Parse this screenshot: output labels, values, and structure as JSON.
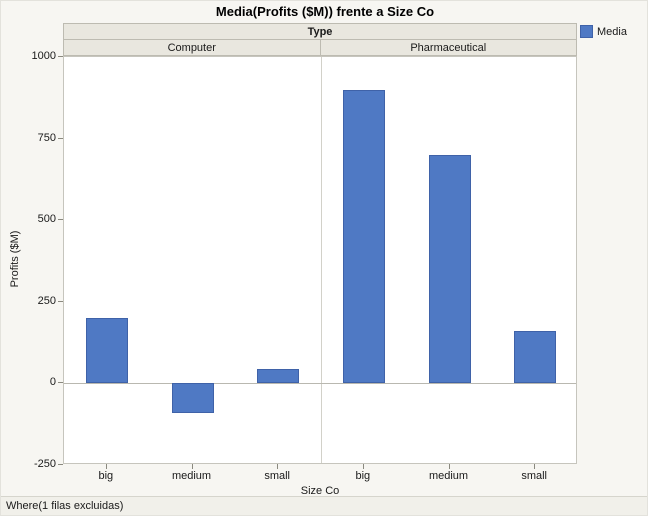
{
  "chart_data": {
    "type": "bar",
    "title": "Media(Profits ($M)) frente a Size Co",
    "group_header": "Type",
    "groups": [
      {
        "label": "Computer",
        "categories": [
          "big",
          "medium",
          "small"
        ],
        "values": [
          200,
          -90,
          45
        ]
      },
      {
        "label": "Pharmaceutical",
        "categories": [
          "big",
          "medium",
          "small"
        ],
        "values": [
          900,
          700,
          160
        ]
      }
    ],
    "series_name": "Media",
    "xlabel": "Size Co",
    "ylabel": "Profits ($M)",
    "ylim": [
      -250,
      1000
    ],
    "yticks": [
      1000,
      750,
      500,
      250,
      0,
      -250
    ],
    "legend": [
      {
        "label": "Media",
        "color": "#4f79c4"
      }
    ],
    "grid": false,
    "legend_position": "top-right",
    "footer": "Where(1 filas excluidas)"
  }
}
